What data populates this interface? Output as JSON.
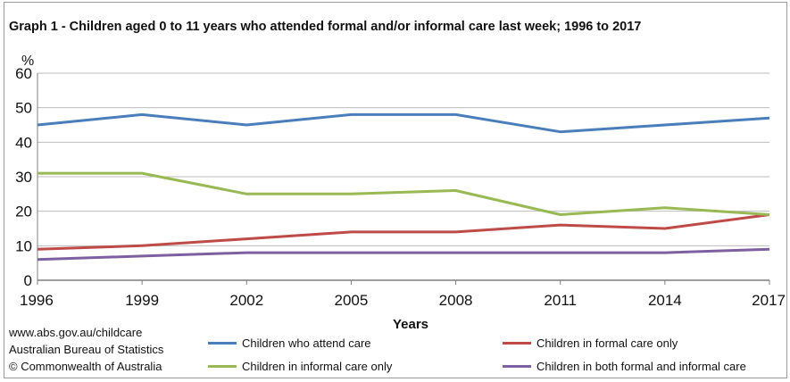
{
  "chart_data": {
    "type": "line",
    "title": "Graph 1 - Children aged 0 to 11 years who attended formal and/or informal care last week; 1996 to 2017",
    "xlabel": "Years",
    "ylabel": "%",
    "x": [
      "1996",
      "1999",
      "2002",
      "2005",
      "2008",
      "2011",
      "2014",
      "2017"
    ],
    "ylim": [
      0,
      60
    ],
    "yticks": [
      "0",
      "10",
      "20",
      "30",
      "40",
      "50",
      "60"
    ],
    "grid": true,
    "legend_position": "bottom",
    "series": [
      {
        "name": "Children who attend care",
        "color": "#4a7ebb",
        "values": [
          45,
          48,
          45,
          48,
          48,
          43,
          45,
          47
        ]
      },
      {
        "name": "Children in formal care only",
        "color": "#be4b48",
        "values": [
          9,
          10,
          12,
          14,
          14,
          16,
          15,
          19
        ]
      },
      {
        "name": "Children in informal care only",
        "color": "#98b954",
        "values": [
          31,
          31,
          25,
          25,
          26,
          19,
          21,
          19
        ]
      },
      {
        "name": "Children in both formal and informal care",
        "color": "#7d60a0",
        "values": [
          6,
          7,
          8,
          8,
          8,
          8,
          8,
          9
        ]
      }
    ]
  },
  "source": {
    "line1": "www.abs.gov.au/childcare",
    "line2": "Australian Bureau of Statistics",
    "line3": "© Commonwealth of Australia"
  }
}
